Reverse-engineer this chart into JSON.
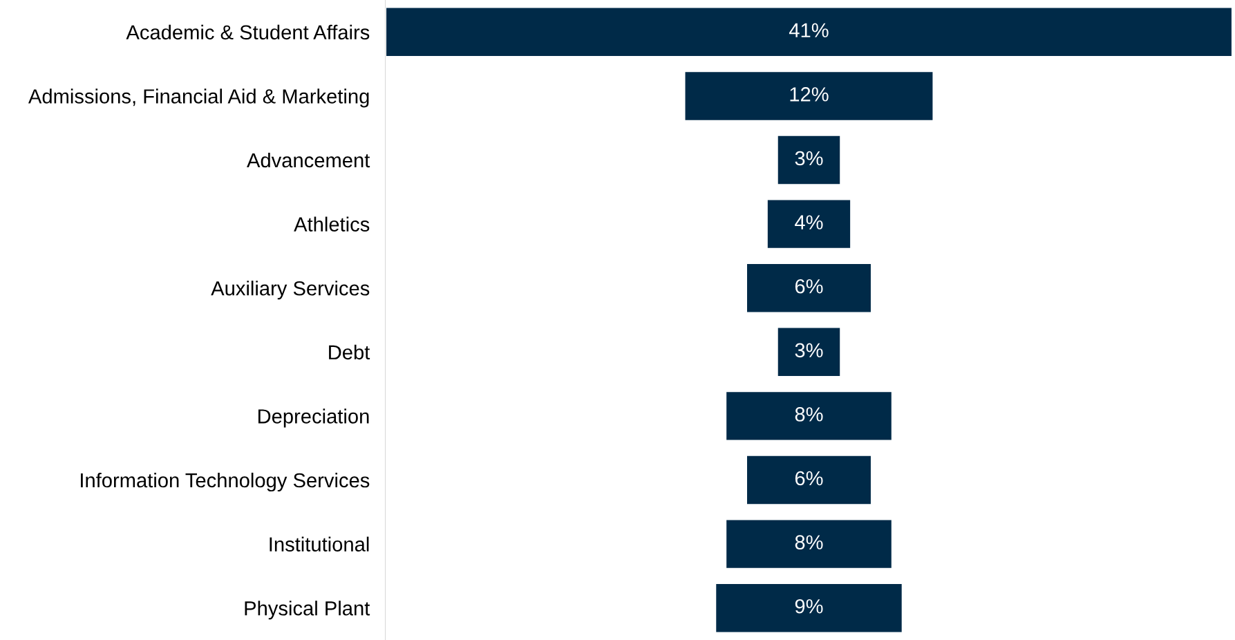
{
  "chart_data": {
    "type": "other",
    "categories": [
      "Academic & Student Affairs",
      "Admissions, Financial Aid & Marketing",
      "Advancement",
      "Athletics",
      "Auxiliary Services",
      "Debt",
      "Depreciation",
      "Information Technology Services",
      "Institutional",
      "Physical Plant"
    ],
    "values": [
      41,
      12,
      3,
      4,
      6,
      3,
      8,
      6,
      8,
      9
    ],
    "value_labels": [
      "41%",
      "12%",
      "3%",
      "4%",
      "6%",
      "3%",
      "8%",
      "6%",
      "8%",
      "9%"
    ],
    "color": "#002a48"
  }
}
